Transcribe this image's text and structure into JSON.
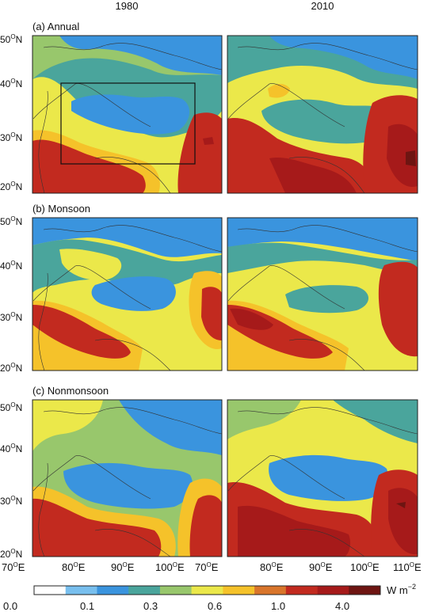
{
  "columns": [
    "1980",
    "2010"
  ],
  "rows": [
    {
      "label": "(a) Annual"
    },
    {
      "label": "(b) Monsoon"
    },
    {
      "label": "(c) Nonmonsoon"
    }
  ],
  "lat_ticks": [
    {
      "deg": "50",
      "sup": "O",
      "hem": "N"
    },
    {
      "deg": "40",
      "sup": "O",
      "hem": "N"
    },
    {
      "deg": "30",
      "sup": "O",
      "hem": "N"
    },
    {
      "deg": "20",
      "sup": "O",
      "hem": "N"
    }
  ],
  "lon_ticks_left": [
    {
      "deg": "70",
      "sup": "O",
      "hem": "E"
    },
    {
      "deg": "80",
      "sup": "O",
      "hem": "E"
    },
    {
      "deg": "90",
      "sup": "O",
      "hem": "E"
    },
    {
      "deg": "100",
      "sup": "O",
      "hem": "E"
    }
  ],
  "lon_ticks_right": [
    {
      "deg": "70",
      "sup": "O",
      "hem": "E"
    },
    {
      "deg": "80",
      "sup": "O",
      "hem": "E"
    },
    {
      "deg": "90",
      "sup": "O",
      "hem": "E"
    },
    {
      "deg": "100",
      "sup": "O",
      "hem": "E"
    },
    {
      "deg": "110",
      "sup": "O",
      "hem": "E"
    }
  ],
  "colorbar": {
    "colors": [
      "#ffffff",
      "#78bfee",
      "#3a94de",
      "#4aa59c",
      "#98c76c",
      "#ebe84a",
      "#f5c22a",
      "#d9752b",
      "#c22a1f",
      "#a61a1a",
      "#6e1512"
    ],
    "tick_labels": [
      "0.0",
      "0.1",
      "0.3",
      "0.6",
      "1.0",
      "4.0"
    ],
    "unit_base": "W m",
    "unit_exp": "−2"
  },
  "colors": {
    "very_low": "#3a94de",
    "low": "#4aa59c",
    "mid_low": "#98c76c",
    "mid": "#ebe84a",
    "mid_high": "#f5c22a",
    "high_orange": "#d9752b",
    "high": "#c22a1f",
    "very_high": "#a61a1a",
    "extreme": "#6e1512"
  }
}
